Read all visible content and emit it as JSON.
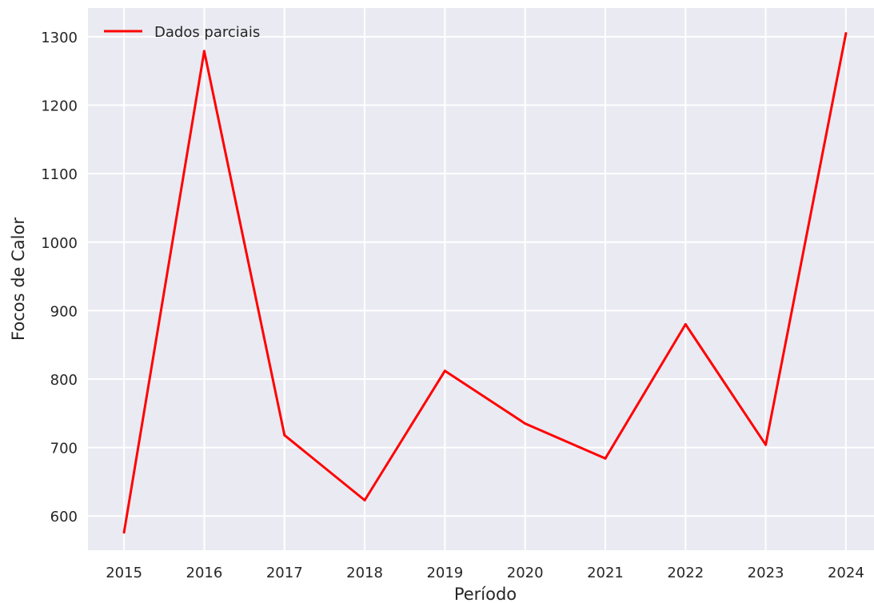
{
  "chart_data": {
    "type": "line",
    "title": "",
    "xlabel": "Período",
    "ylabel": "Focos de Calor",
    "x": [
      2015,
      2016,
      2017,
      2018,
      2019,
      2020,
      2021,
      2022,
      2023,
      2024
    ],
    "x_tick_labels": [
      "2015",
      "2016",
      "2017",
      "2018",
      "2019",
      "2020",
      "2021",
      "2022",
      "2023",
      "2024"
    ],
    "y_ticks": [
      600,
      700,
      800,
      900,
      1000,
      1100,
      1200,
      1300
    ],
    "y_tick_labels": [
      "600",
      "700",
      "800",
      "900",
      "1000",
      "1100",
      "1200",
      "1300"
    ],
    "xlim": [
      2014.55,
      2024.35
    ],
    "ylim": [
      550,
      1342
    ],
    "grid": true,
    "legend_position": "top-left",
    "series": [
      {
        "name": "Dados parciais",
        "color": "#ff0000",
        "values": [
          576,
          1279,
          718,
          623,
          812,
          735,
          684,
          880,
          704,
          1305
        ]
      }
    ]
  },
  "colors": {
    "plot_background": "#eaeaf2",
    "grid": "#ffffff",
    "text": "#262626"
  }
}
